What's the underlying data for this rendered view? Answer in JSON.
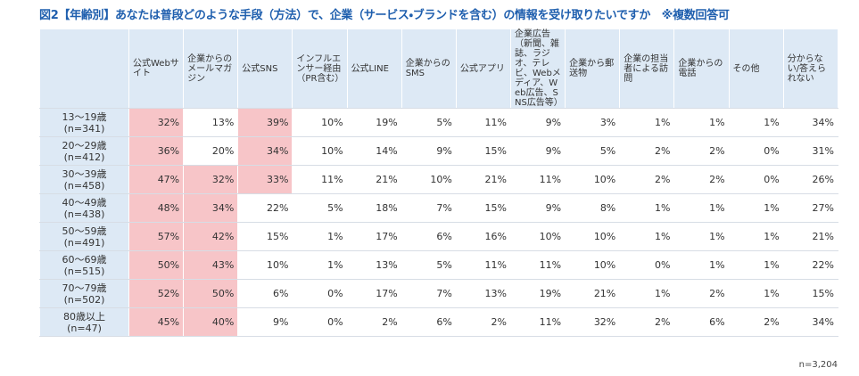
{
  "title": "図2【年齢別】あなたは普段どのような手段（方法）で、企業（サービス・ブランドを含む）の情報を受け取りたいですか　※複数回答可",
  "table": {
    "columns": [
      "公式Webサイト",
      "企業からのメールマガジン",
      "公式SNS",
      "インフルエンサー経由（PR含む）",
      "公式LINE",
      "企業からのSMS",
      "公式アプリ",
      "企業広告（新聞、雑誌、ラジオ、テレビ、Webメディア、Web広告、SNS広告等）",
      "企業から郵送物",
      "企業の担当者による訪問",
      "企業からの電話",
      "その他",
      "分からない/答えられない"
    ],
    "highlight_color": "#f7c5c8",
    "rows": [
      {
        "label": "13～19歳",
        "n": "(n=341)",
        "values": [
          "32%",
          "13%",
          "39%",
          "10%",
          "19%",
          "5%",
          "11%",
          "9%",
          "3%",
          "1%",
          "1%",
          "1%",
          "34%"
        ],
        "highlight": [
          0,
          2
        ]
      },
      {
        "label": "20～29歳",
        "n": "(n=412)",
        "values": [
          "36%",
          "20%",
          "34%",
          "10%",
          "14%",
          "9%",
          "15%",
          "9%",
          "5%",
          "2%",
          "2%",
          "0%",
          "31%"
        ],
        "highlight": [
          0,
          2
        ]
      },
      {
        "label": "30～39歳",
        "n": "(n=458)",
        "values": [
          "47%",
          "32%",
          "33%",
          "11%",
          "21%",
          "10%",
          "21%",
          "11%",
          "10%",
          "2%",
          "2%",
          "0%",
          "26%"
        ],
        "highlight": [
          0,
          1,
          2
        ]
      },
      {
        "label": "40～49歳",
        "n": "(n=438)",
        "values": [
          "48%",
          "34%",
          "22%",
          "5%",
          "18%",
          "7%",
          "15%",
          "9%",
          "8%",
          "1%",
          "1%",
          "1%",
          "27%"
        ],
        "highlight": [
          0,
          1
        ]
      },
      {
        "label": "50～59歳",
        "n": "(n=491)",
        "values": [
          "57%",
          "42%",
          "15%",
          "1%",
          "17%",
          "6%",
          "16%",
          "10%",
          "10%",
          "1%",
          "1%",
          "1%",
          "21%"
        ],
        "highlight": [
          0,
          1
        ]
      },
      {
        "label": "60～69歳",
        "n": "(n=515)",
        "values": [
          "50%",
          "43%",
          "10%",
          "1%",
          "13%",
          "5%",
          "11%",
          "11%",
          "10%",
          "0%",
          "1%",
          "1%",
          "22%"
        ],
        "highlight": [
          0,
          1
        ]
      },
      {
        "label": "70～79歳",
        "n": "(n=502)",
        "values": [
          "52%",
          "50%",
          "6%",
          "0%",
          "17%",
          "7%",
          "13%",
          "19%",
          "21%",
          "1%",
          "2%",
          "1%",
          "15%"
        ],
        "highlight": [
          0,
          1
        ]
      },
      {
        "label": "80歳以上",
        "n": "(n=47)",
        "values": [
          "45%",
          "40%",
          "9%",
          "0%",
          "2%",
          "6%",
          "2%",
          "11%",
          "32%",
          "2%",
          "6%",
          "2%",
          "34%"
        ],
        "highlight": [
          0,
          1
        ]
      }
    ]
  },
  "footnote": "n=3,204"
}
